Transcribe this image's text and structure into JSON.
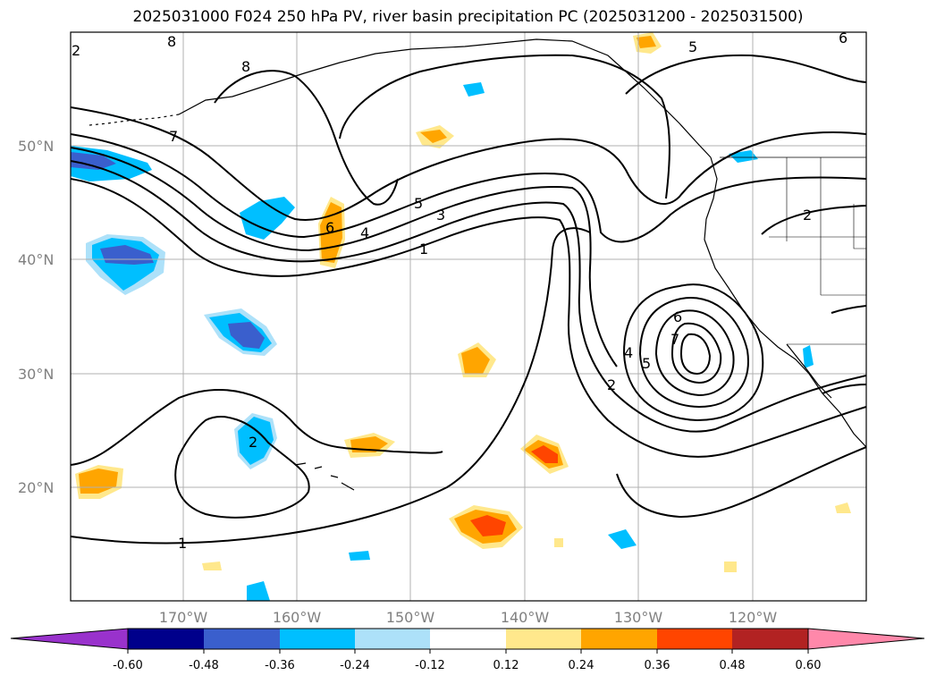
{
  "title": "2025031000 F024 250 hPa PV, river basin precipitation PC (2025031200 - 2025031500)",
  "map": {
    "lat_labels": [
      "50°N",
      "40°N",
      "30°N",
      "20°N"
    ],
    "lon_labels": [
      "170°W",
      "160°W",
      "150°W",
      "140°W",
      "130°W",
      "120°W"
    ],
    "pv_contour_labels": [
      "8",
      "8",
      "7",
      "5",
      "6",
      "4",
      "5",
      "3",
      "1",
      "6",
      "7",
      "4",
      "5",
      "2",
      "2",
      "1",
      "2",
      "2",
      "6"
    ]
  },
  "colorbar": {
    "tick_labels": [
      "-0.60",
      "-0.48",
      "-0.36",
      "-0.24",
      "-0.12",
      "0.12",
      "0.24",
      "0.36",
      "0.48",
      "0.60"
    ],
    "colors": [
      "#9932CC",
      "#00008B",
      "#3A5FCD",
      "#00BFFF",
      "#ADE1F9",
      "#FFFFFF",
      "#FFE88C",
      "#FFA500",
      "#FF4500",
      "#B22222",
      "#FF88AA"
    ]
  }
}
